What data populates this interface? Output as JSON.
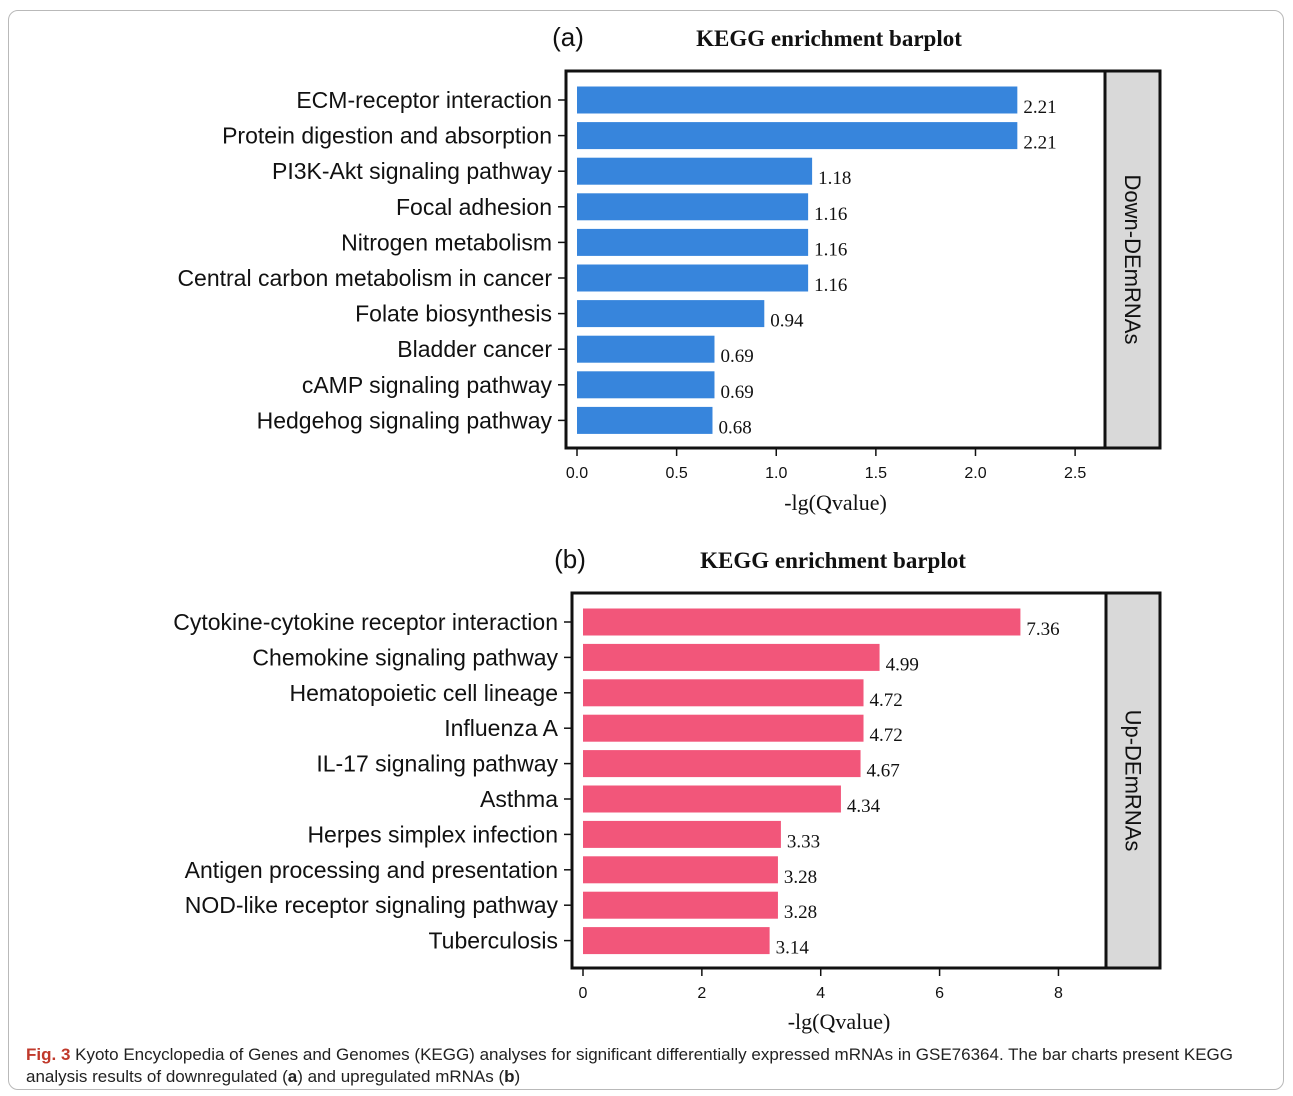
{
  "caption": {
    "figure_number": "Fig. 3",
    "part1": "Kyoto Encyclopedia of Genes and Genomes (KEGG) analyses for significant differentially expressed mRNAs in GSE76364. The bar charts present KEGG analysis results of downregulated (",
    "letter_a": "a",
    "part2": ") and upregulated mRNAs (",
    "letter_b": "b",
    "part3": ")"
  },
  "chart_data": [
    {
      "type": "bar",
      "orientation": "horizontal",
      "panel_label": "(a)",
      "title": "KEGG enrichment barplot",
      "xlabel": "-lg(Qvalue)",
      "ylabel": "",
      "facet_label": "Down-DEmRNAs",
      "xlim": [
        0,
        2.65
      ],
      "xticks": [
        0.0,
        0.5,
        1.0,
        1.5,
        2.0,
        2.5
      ],
      "xtick_labels": [
        "0.0",
        "0.5",
        "1.0",
        "1.5",
        "2.0",
        "2.5"
      ],
      "bar_color": "#3785dc",
      "categories": [
        "ECM-receptor interaction",
        "Protein digestion and absorption",
        "PI3K-Akt signaling pathway",
        "Focal adhesion",
        "Nitrogen metabolism",
        "Central carbon metabolism in cancer",
        "Folate biosynthesis",
        "Bladder cancer",
        "cAMP signaling pathway",
        "Hedgehog signaling pathway"
      ],
      "values": [
        2.21,
        2.21,
        1.18,
        1.16,
        1.16,
        1.16,
        0.94,
        0.69,
        0.69,
        0.68
      ],
      "value_labels": [
        "2.21",
        "2.21",
        "1.18",
        "1.16",
        "1.16",
        "1.16",
        "0.94",
        "0.69",
        "0.69",
        "0.68"
      ]
    },
    {
      "type": "bar",
      "orientation": "horizontal",
      "panel_label": "(b)",
      "title": "KEGG enrichment barplot",
      "xlabel": "-lg(Qvalue)",
      "ylabel": "",
      "facet_label": "Up-DEmRNAs",
      "xlim": [
        0,
        8.8
      ],
      "xticks": [
        0,
        2,
        4,
        6,
        8
      ],
      "xtick_labels": [
        "0",
        "2",
        "4",
        "6",
        "8"
      ],
      "bar_color": "#f2567a",
      "categories": [
        "Cytokine-cytokine receptor interaction",
        "Chemokine signaling pathway",
        "Hematopoietic cell lineage",
        "Influenza A",
        "IL-17 signaling pathway",
        "Asthma",
        "Herpes simplex infection",
        "Antigen processing and presentation",
        "NOD-like receptor signaling pathway",
        "Tuberculosis"
      ],
      "values": [
        7.36,
        4.99,
        4.72,
        4.72,
        4.67,
        4.34,
        3.33,
        3.28,
        3.28,
        3.14
      ],
      "value_labels": [
        "7.36",
        "4.99",
        "4.72",
        "4.72",
        "4.67",
        "4.34",
        "3.33",
        "3.28",
        "3.28",
        "3.14"
      ]
    }
  ]
}
